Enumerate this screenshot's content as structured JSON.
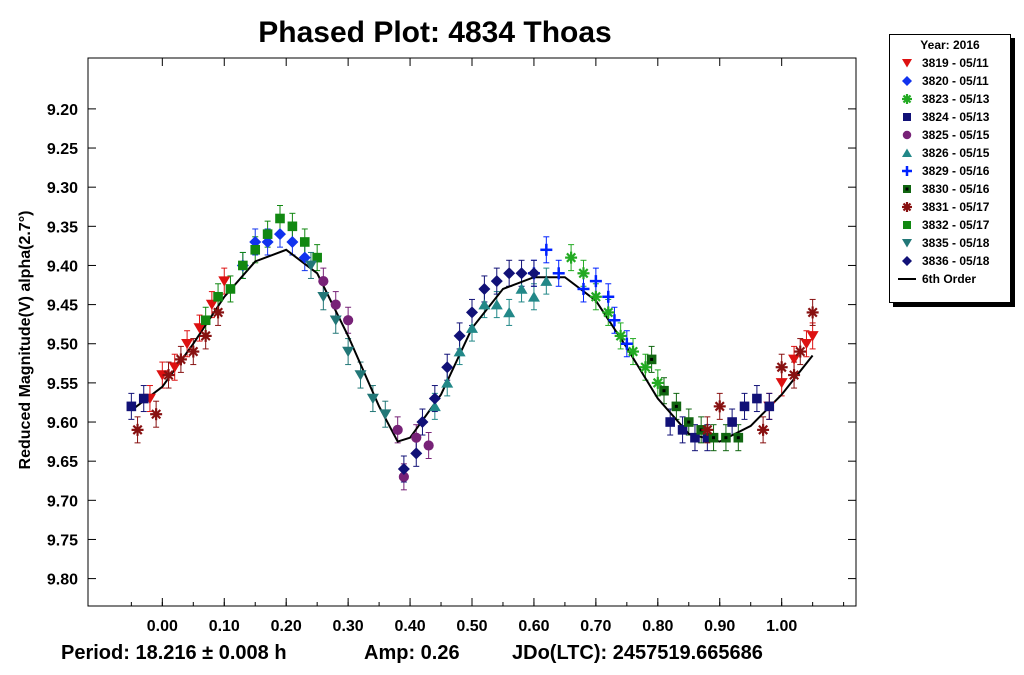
{
  "chart_data": {
    "type": "scatter",
    "title": "Phased Plot: 4834 Thoas",
    "ylabel": "Reduced Magnitude(V) alpha(2.7°)",
    "xlabel": "",
    "xlim": [
      -0.12,
      1.12
    ],
    "ylim": [
      9.835,
      9.135
    ],
    "y_inverted": true,
    "x_ticks": [
      "0.00",
      "0.10",
      "0.20",
      "0.30",
      "0.40",
      "0.50",
      "0.60",
      "0.70",
      "0.80",
      "0.90",
      "1.00"
    ],
    "y_ticks": [
      "9.20",
      "9.25",
      "9.30",
      "9.35",
      "9.40",
      "9.45",
      "9.50",
      "9.55",
      "9.60",
      "9.65",
      "9.70",
      "9.75",
      "9.80"
    ],
    "legend": {
      "title": "Year: 2016",
      "placement": "outside-right"
    },
    "series": [
      {
        "name": "3819 - 05/11",
        "color": "#dd1111",
        "marker": "tri-down",
        "points": [
          [
            -0.02,
            9.57
          ],
          [
            0.0,
            9.54
          ],
          [
            0.02,
            9.53
          ],
          [
            0.04,
            9.5
          ],
          [
            0.06,
            9.48
          ],
          [
            0.08,
            9.45
          ],
          [
            0.1,
            9.42
          ],
          [
            0.98,
            9.58
          ],
          [
            1.0,
            9.55
          ],
          [
            1.02,
            9.52
          ],
          [
            1.04,
            9.5
          ],
          [
            1.05,
            9.49
          ]
        ]
      },
      {
        "name": "3820 - 05/11",
        "color": "#1133ee",
        "marker": "diamond",
        "points": [
          [
            0.13,
            9.4
          ],
          [
            0.15,
            9.37
          ],
          [
            0.17,
            9.37
          ],
          [
            0.19,
            9.36
          ],
          [
            0.21,
            9.37
          ],
          [
            0.23,
            9.39
          ]
        ]
      },
      {
        "name": "3823 - 05/13",
        "color": "#22aa22",
        "marker": "asterisk",
        "points": [
          [
            0.66,
            9.39
          ],
          [
            0.68,
            9.41
          ],
          [
            0.7,
            9.44
          ],
          [
            0.72,
            9.46
          ],
          [
            0.74,
            9.49
          ],
          [
            0.76,
            9.51
          ],
          [
            0.78,
            9.53
          ],
          [
            0.8,
            9.55
          ]
        ]
      },
      {
        "name": "3824 - 05/13",
        "color": "#111177",
        "marker": "square",
        "points": [
          [
            -0.05,
            9.58
          ],
          [
            -0.03,
            9.57
          ],
          [
            0.82,
            9.6
          ],
          [
            0.84,
            9.61
          ],
          [
            0.86,
            9.62
          ],
          [
            0.88,
            9.62
          ],
          [
            0.92,
            9.6
          ],
          [
            0.94,
            9.58
          ],
          [
            0.96,
            9.57
          ],
          [
            0.98,
            9.58
          ]
        ]
      },
      {
        "name": "3825 - 05/15",
        "color": "#772277",
        "marker": "circle",
        "points": [
          [
            0.26,
            9.42
          ],
          [
            0.28,
            9.45
          ],
          [
            0.3,
            9.47
          ],
          [
            0.38,
            9.61
          ],
          [
            0.39,
            9.67
          ],
          [
            0.41,
            9.62
          ],
          [
            0.43,
            9.63
          ]
        ]
      },
      {
        "name": "3826 - 05/15",
        "color": "#228888",
        "marker": "tri-up",
        "points": [
          [
            0.44,
            9.58
          ],
          [
            0.46,
            9.55
          ],
          [
            0.48,
            9.51
          ],
          [
            0.5,
            9.48
          ],
          [
            0.52,
            9.45
          ],
          [
            0.54,
            9.45
          ],
          [
            0.56,
            9.46
          ],
          [
            0.58,
            9.43
          ],
          [
            0.6,
            9.44
          ],
          [
            0.62,
            9.42
          ]
        ]
      },
      {
        "name": "3829 - 05/16",
        "color": "#0022ff",
        "marker": "plus",
        "points": [
          [
            0.6,
            9.41
          ],
          [
            0.62,
            9.38
          ],
          [
            0.64,
            9.41
          ],
          [
            0.68,
            9.43
          ],
          [
            0.7,
            9.42
          ],
          [
            0.72,
            9.44
          ],
          [
            0.73,
            9.47
          ],
          [
            0.75,
            9.5
          ]
        ]
      },
      {
        "name": "3830 - 05/16",
        "color": "#116611",
        "marker": "square-dot",
        "points": [
          [
            0.79,
            9.52
          ],
          [
            0.81,
            9.56
          ],
          [
            0.83,
            9.58
          ],
          [
            0.85,
            9.6
          ],
          [
            0.87,
            9.61
          ],
          [
            0.89,
            9.62
          ],
          [
            0.91,
            9.62
          ],
          [
            0.93,
            9.62
          ]
        ]
      },
      {
        "name": "3831 - 05/17",
        "color": "#881111",
        "marker": "asterisk",
        "points": [
          [
            -0.04,
            9.61
          ],
          [
            -0.01,
            9.59
          ],
          [
            0.01,
            9.54
          ],
          [
            0.03,
            9.52
          ],
          [
            0.05,
            9.51
          ],
          [
            0.07,
            9.49
          ],
          [
            0.09,
            9.46
          ],
          [
            0.88,
            9.61
          ],
          [
            0.9,
            9.58
          ],
          [
            0.97,
            9.61
          ],
          [
            1.0,
            9.53
          ],
          [
            1.02,
            9.54
          ],
          [
            1.03,
            9.51
          ],
          [
            1.05,
            9.46
          ]
        ]
      },
      {
        "name": "3832 - 05/17",
        "color": "#118811",
        "marker": "square",
        "points": [
          [
            0.07,
            9.47
          ],
          [
            0.09,
            9.44
          ],
          [
            0.11,
            9.43
          ],
          [
            0.13,
            9.4
          ],
          [
            0.15,
            9.38
          ],
          [
            0.17,
            9.36
          ],
          [
            0.19,
            9.34
          ],
          [
            0.21,
            9.35
          ],
          [
            0.23,
            9.37
          ],
          [
            0.25,
            9.39
          ]
        ]
      },
      {
        "name": "3835 - 05/18",
        "color": "#227777",
        "marker": "tri-down",
        "points": [
          [
            0.24,
            9.4
          ],
          [
            0.26,
            9.44
          ],
          [
            0.28,
            9.47
          ],
          [
            0.3,
            9.51
          ],
          [
            0.32,
            9.54
          ],
          [
            0.34,
            9.57
          ],
          [
            0.36,
            9.59
          ]
        ]
      },
      {
        "name": "3836 - 05/18",
        "color": "#111177",
        "marker": "diamond",
        "points": [
          [
            0.39,
            9.66
          ],
          [
            0.41,
            9.64
          ],
          [
            0.42,
            9.6
          ],
          [
            0.44,
            9.57
          ],
          [
            0.46,
            9.53
          ],
          [
            0.48,
            9.49
          ],
          [
            0.5,
            9.46
          ],
          [
            0.52,
            9.43
          ],
          [
            0.54,
            9.42
          ],
          [
            0.56,
            9.41
          ],
          [
            0.58,
            9.41
          ],
          [
            0.6,
            9.41
          ]
        ]
      }
    ],
    "fit": {
      "name": "6th Order",
      "color": "#000000",
      "points": [
        [
          -0.05,
          9.585
        ],
        [
          0.0,
          9.555
        ],
        [
          0.05,
          9.5
        ],
        [
          0.1,
          9.44
        ],
        [
          0.15,
          9.395
        ],
        [
          0.2,
          9.38
        ],
        [
          0.25,
          9.41
        ],
        [
          0.3,
          9.49
        ],
        [
          0.35,
          9.58
        ],
        [
          0.38,
          9.625
        ],
        [
          0.4,
          9.62
        ],
        [
          0.45,
          9.565
        ],
        [
          0.5,
          9.48
        ],
        [
          0.55,
          9.43
        ],
        [
          0.6,
          9.415
        ],
        [
          0.65,
          9.415
        ],
        [
          0.7,
          9.445
        ],
        [
          0.75,
          9.505
        ],
        [
          0.8,
          9.57
        ],
        [
          0.85,
          9.615
        ],
        [
          0.9,
          9.625
        ],
        [
          0.95,
          9.605
        ],
        [
          1.0,
          9.565
        ],
        [
          1.05,
          9.515
        ]
      ]
    }
  },
  "footer": {
    "period": "Period: 18.216 ± 0.008 h",
    "amp": "Amp: 0.26",
    "jdo": "JDo(LTC): 2457519.665686"
  }
}
